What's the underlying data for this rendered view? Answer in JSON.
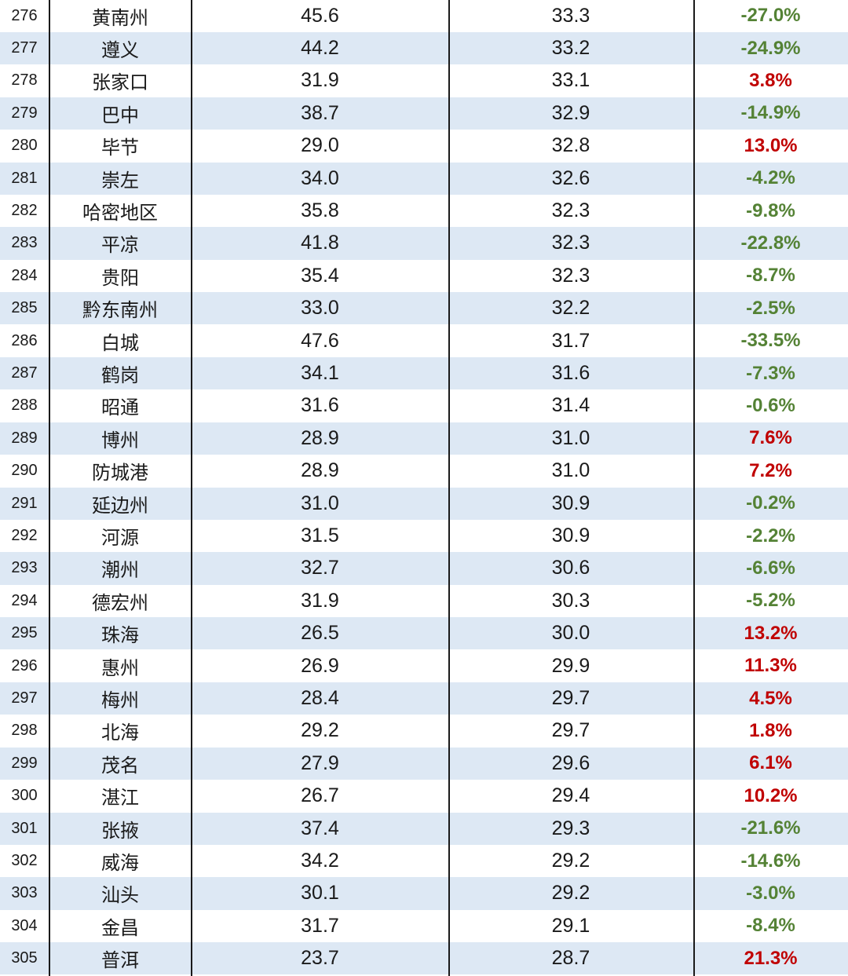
{
  "colors": {
    "row_alt_bg": "#dde8f4",
    "positive_change": "#c00000",
    "negative_change": "#548235",
    "grid_line": "#1a1a1a"
  },
  "rows": [
    {
      "rank": "276",
      "city": "黄南州",
      "v1": "45.6",
      "v2": "33.3",
      "change": "-27.0%"
    },
    {
      "rank": "277",
      "city": "遵义",
      "v1": "44.2",
      "v2": "33.2",
      "change": "-24.9%"
    },
    {
      "rank": "278",
      "city": "张家口",
      "v1": "31.9",
      "v2": "33.1",
      "change": "3.8%"
    },
    {
      "rank": "279",
      "city": "巴中",
      "v1": "38.7",
      "v2": "32.9",
      "change": "-14.9%"
    },
    {
      "rank": "280",
      "city": "毕节",
      "v1": "29.0",
      "v2": "32.8",
      "change": "13.0%"
    },
    {
      "rank": "281",
      "city": "崇左",
      "v1": "34.0",
      "v2": "32.6",
      "change": "-4.2%"
    },
    {
      "rank": "282",
      "city": "哈密地区",
      "v1": "35.8",
      "v2": "32.3",
      "change": "-9.8%"
    },
    {
      "rank": "283",
      "city": "平凉",
      "v1": "41.8",
      "v2": "32.3",
      "change": "-22.8%"
    },
    {
      "rank": "284",
      "city": "贵阳",
      "v1": "35.4",
      "v2": "32.3",
      "change": "-8.7%"
    },
    {
      "rank": "285",
      "city": "黔东南州",
      "v1": "33.0",
      "v2": "32.2",
      "change": "-2.5%"
    },
    {
      "rank": "286",
      "city": "白城",
      "v1": "47.6",
      "v2": "31.7",
      "change": "-33.5%"
    },
    {
      "rank": "287",
      "city": "鹤岗",
      "v1": "34.1",
      "v2": "31.6",
      "change": "-7.3%"
    },
    {
      "rank": "288",
      "city": "昭通",
      "v1": "31.6",
      "v2": "31.4",
      "change": "-0.6%"
    },
    {
      "rank": "289",
      "city": "博州",
      "v1": "28.9",
      "v2": "31.0",
      "change": "7.6%"
    },
    {
      "rank": "290",
      "city": "防城港",
      "v1": "28.9",
      "v2": "31.0",
      "change": "7.2%"
    },
    {
      "rank": "291",
      "city": "延边州",
      "v1": "31.0",
      "v2": "30.9",
      "change": "-0.2%"
    },
    {
      "rank": "292",
      "city": "河源",
      "v1": "31.5",
      "v2": "30.9",
      "change": "-2.2%"
    },
    {
      "rank": "293",
      "city": "潮州",
      "v1": "32.7",
      "v2": "30.6",
      "change": "-6.6%"
    },
    {
      "rank": "294",
      "city": "德宏州",
      "v1": "31.9",
      "v2": "30.3",
      "change": "-5.2%"
    },
    {
      "rank": "295",
      "city": "珠海",
      "v1": "26.5",
      "v2": "30.0",
      "change": "13.2%"
    },
    {
      "rank": "296",
      "city": "惠州",
      "v1": "26.9",
      "v2": "29.9",
      "change": "11.3%"
    },
    {
      "rank": "297",
      "city": "梅州",
      "v1": "28.4",
      "v2": "29.7",
      "change": "4.5%"
    },
    {
      "rank": "298",
      "city": "北海",
      "v1": "29.2",
      "v2": "29.7",
      "change": "1.8%"
    },
    {
      "rank": "299",
      "city": "茂名",
      "v1": "27.9",
      "v2": "29.6",
      "change": "6.1%"
    },
    {
      "rank": "300",
      "city": "湛江",
      "v1": "26.7",
      "v2": "29.4",
      "change": "10.2%"
    },
    {
      "rank": "301",
      "city": "张掖",
      "v1": "37.4",
      "v2": "29.3",
      "change": "-21.6%"
    },
    {
      "rank": "302",
      "city": "威海",
      "v1": "34.2",
      "v2": "29.2",
      "change": "-14.6%"
    },
    {
      "rank": "303",
      "city": "汕头",
      "v1": "30.1",
      "v2": "29.2",
      "change": "-3.0%"
    },
    {
      "rank": "304",
      "city": "金昌",
      "v1": "31.7",
      "v2": "29.1",
      "change": "-8.4%"
    },
    {
      "rank": "305",
      "city": "普洱",
      "v1": "23.7",
      "v2": "28.7",
      "change": "21.3%"
    }
  ]
}
